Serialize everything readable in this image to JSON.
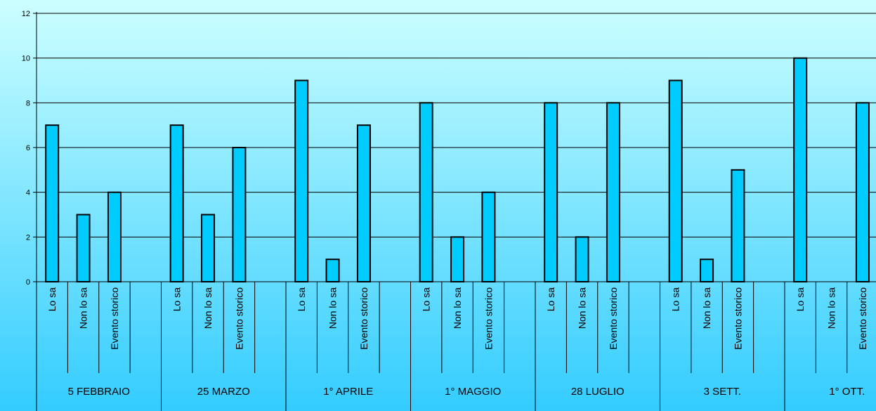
{
  "chart_data": {
    "type": "bar",
    "title": "",
    "xlabel": "",
    "ylabel": "",
    "ylim": [
      0,
      12
    ],
    "yticks": [
      0,
      2,
      4,
      6,
      8,
      10,
      12
    ],
    "grid": true,
    "legend": "none",
    "colors": {
      "bar_fill": "#00CCFF",
      "bar_stroke": "#000000",
      "background_top": "#CCFFFF",
      "background_bottom": "#33CCFF",
      "gridline": "#000000"
    },
    "subcategories": [
      "Lo sa",
      "Non lo sa",
      "Evento storico"
    ],
    "groups": [
      {
        "label": "5 FEBBRAIO",
        "values": [
          7,
          3,
          4
        ]
      },
      {
        "label": "25 MARZO",
        "values": [
          7,
          3,
          6
        ]
      },
      {
        "label": "1° APRILE",
        "values": [
          9,
          1,
          7
        ]
      },
      {
        "label": "1° MAGGIO",
        "values": [
          8,
          2,
          4
        ]
      },
      {
        "label": "28 LUGLIO",
        "values": [
          8,
          2,
          8
        ]
      },
      {
        "label": "3 SETT.",
        "values": [
          9,
          1,
          5
        ]
      },
      {
        "label": "1° OTT.",
        "values": [
          10,
          0,
          8
        ]
      }
    ]
  }
}
